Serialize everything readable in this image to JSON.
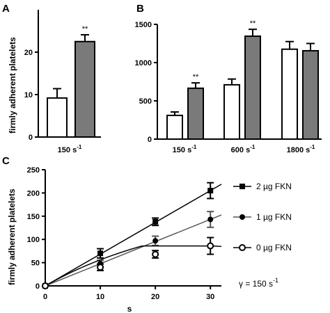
{
  "colors": {
    "control": "#ffffff",
    "treated": "#7a7a7a",
    "stroke": "#000000",
    "gray_line": "#555555"
  },
  "chart_data": [
    {
      "panel": "A",
      "type": "bar",
      "ylabel": "firmly adherent platelets",
      "ylim": [
        0,
        30
      ],
      "yticks": [
        0,
        10,
        20
      ],
      "categories": [
        "150 s-1"
      ],
      "series": [
        {
          "values": [
            9.2
          ],
          "errors": [
            2.2
          ],
          "fill": "white"
        },
        {
          "values": [
            22.5
          ],
          "errors": [
            1.6
          ],
          "fill": "gray",
          "annotations": [
            "**"
          ]
        }
      ]
    },
    {
      "panel": "B",
      "type": "bar",
      "ylim": [
        0,
        1500
      ],
      "yticks": [
        0,
        500,
        1000,
        1500
      ],
      "categories": [
        "150 s-1",
        "600 s-1",
        "1800 s-1"
      ],
      "series": [
        {
          "values": [
            310,
            710,
            1175
          ],
          "errors": [
            45,
            75,
            100
          ],
          "fill": "white"
        },
        {
          "values": [
            665,
            1345,
            1155
          ],
          "errors": [
            70,
            90,
            95
          ],
          "fill": "gray",
          "annotations": [
            "**",
            "**",
            ""
          ]
        }
      ]
    },
    {
      "panel": "C",
      "type": "line",
      "xlabel": "s",
      "ylabel": "firmly adherent platelets",
      "xlim": [
        0,
        32
      ],
      "ylim": [
        0,
        250
      ],
      "xticks": [
        0,
        10,
        20,
        30
      ],
      "yticks": [
        0,
        50,
        100,
        150,
        200,
        250
      ],
      "x": [
        0,
        10,
        20,
        30
      ],
      "series": [
        {
          "name": "2 µg FKN",
          "marker": "square",
          "values": [
            0,
            70,
            138,
            205
          ],
          "errors": [
            0,
            10,
            8,
            17
          ],
          "fit": "linear"
        },
        {
          "name": "1 µg FKN",
          "marker": "circle",
          "values": [
            0,
            48,
            97,
            143
          ],
          "errors": [
            0,
            7,
            10,
            17
          ],
          "fit": "linear"
        },
        {
          "name": "0 µg FKN",
          "marker": "open-circle",
          "values": [
            0,
            40,
            68,
            86
          ],
          "errors": [
            0,
            7,
            8,
            18
          ],
          "fit": "saturating"
        }
      ],
      "annotation": "γ = 150 s"
    }
  ]
}
